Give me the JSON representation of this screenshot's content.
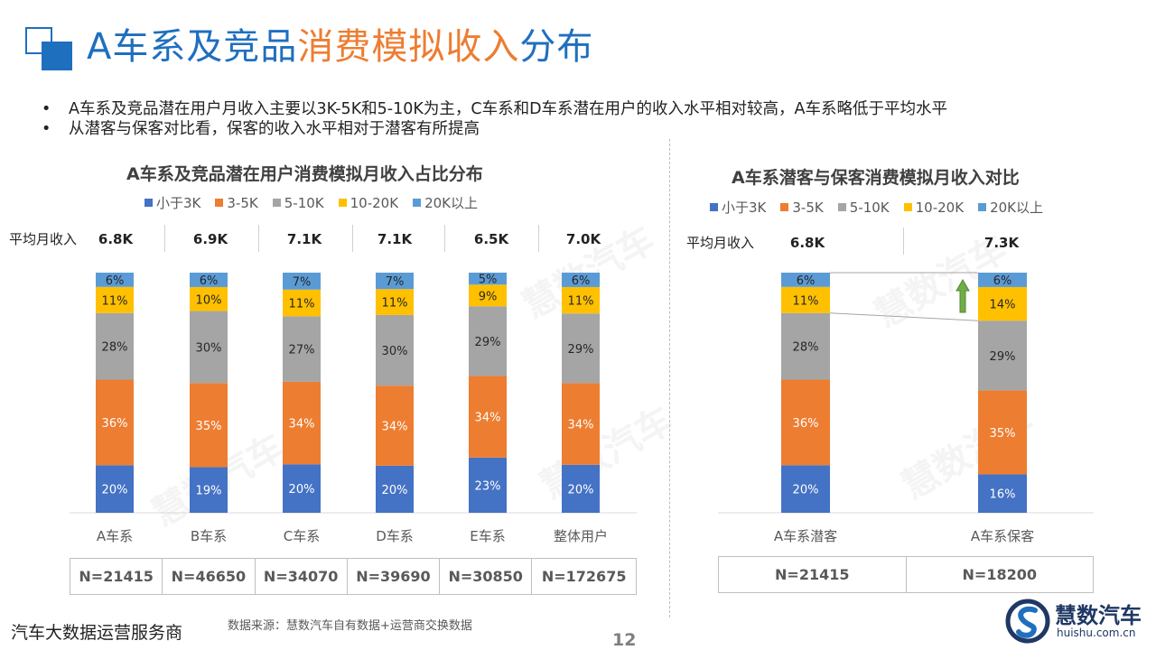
{
  "header": {
    "title_part1": "A车系及竞品",
    "title_part2": "消费模拟收入",
    "title_part3": "分布",
    "title_color_main": "#1f6fbf",
    "title_color_highlight": "#ed7d31"
  },
  "bullets": [
    "A车系及竞品潜在用户月收入主要以3K-5K和5-10K为主，C车系和D车系潜在用户的收入水平相对较高，A车系略低于平均水平",
    "从潜客与保客对比看，保客的收入水平相对于潜客有所提高"
  ],
  "bullet_symbol": "•",
  "legend_items": [
    {
      "label": "小于3K",
      "color": "#4472c4"
    },
    {
      "label": "3-5K",
      "color": "#ed7d31"
    },
    {
      "label": "5-10K",
      "color": "#a5a5a5"
    },
    {
      "label": "10-20K",
      "color": "#ffc000"
    },
    {
      "label": "20K以上",
      "color": "#5b9bd5"
    }
  ],
  "avg_income_label": "平均月收入",
  "chart_data": [
    {
      "type": "bar",
      "stacked": true,
      "title": "A车系及竞品潜在用户消费模拟月收入占比分布",
      "categories": [
        "A车系",
        "B车系",
        "C车系",
        "D车系",
        "E车系",
        "整体用户"
      ],
      "series": [
        {
          "name": "小于3K",
          "values": [
            20,
            19,
            20,
            20,
            23,
            20
          ]
        },
        {
          "name": "3-5K",
          "values": [
            36,
            35,
            34,
            34,
            34,
            34
          ]
        },
        {
          "name": "5-10K",
          "values": [
            28,
            30,
            27,
            30,
            29,
            29
          ]
        },
        {
          "name": "10-20K",
          "values": [
            11,
            10,
            11,
            11,
            9,
            11
          ]
        },
        {
          "name": "20K以上",
          "values": [
            6,
            6,
            7,
            7,
            5,
            6
          ]
        }
      ],
      "avg_income": [
        "6.8K",
        "6.9K",
        "7.1K",
        "7.1K",
        "6.5K",
        "7.0K"
      ],
      "sample_sizes": [
        "N=21415",
        "N=46650",
        "N=34070",
        "N=39690",
        "N=30850",
        "N=172675"
      ],
      "ylim": [
        0,
        100
      ],
      "legend": "top"
    },
    {
      "type": "bar",
      "stacked": true,
      "title": "A车系潜客与保客消费模拟月收入对比",
      "categories": [
        "A车系潜客",
        "A车系保客"
      ],
      "series": [
        {
          "name": "小于3K",
          "values": [
            20,
            16
          ]
        },
        {
          "name": "3-5K",
          "values": [
            36,
            35
          ]
        },
        {
          "name": "5-10K",
          "values": [
            28,
            29
          ]
        },
        {
          "name": "10-20K",
          "values": [
            11,
            14
          ]
        },
        {
          "name": "20K以上",
          "values": [
            6,
            6
          ]
        }
      ],
      "avg_income": [
        "6.8K",
        "7.3K"
      ],
      "sample_sizes": [
        "N=21415",
        "N=18200"
      ],
      "ylim": [
        0,
        100
      ],
      "legend": "top"
    }
  ],
  "footer": {
    "tagline": "汽车大数据运营服务商",
    "source": "数据来源：慧数汽车自有数据+运营商交换数据",
    "page_number": "12"
  },
  "brand": {
    "name": "慧数汽车",
    "url": "huishu.com.cn",
    "watermark": "慧数汽车"
  }
}
